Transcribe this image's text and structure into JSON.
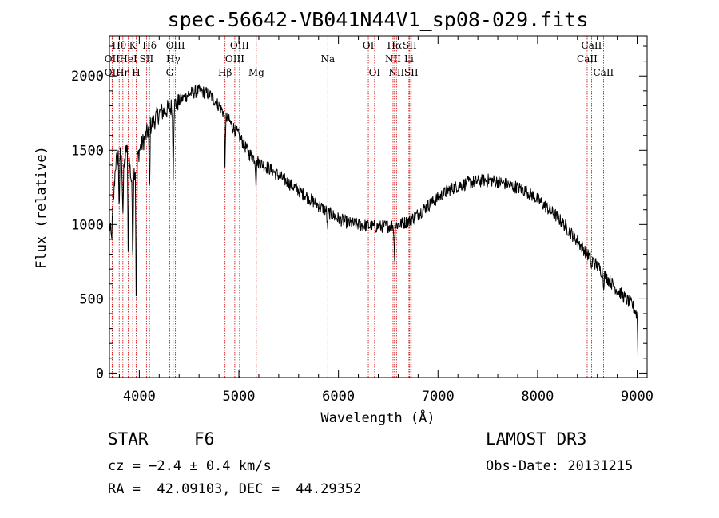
{
  "colors": {
    "spectrum": "#000000",
    "line_marker": "#cc0000",
    "axis": "#000000"
  },
  "chart_data": {
    "type": "line",
    "title": "spec-56642-VB041N44V1_sp08-029.fits",
    "xlabel": "Wavelength (Å)",
    "ylabel": "Flux (relative)",
    "xlim": [
      3700,
      9100
    ],
    "ylim": [
      -30,
      2270
    ],
    "xticks": [
      4000,
      5000,
      6000,
      7000,
      8000,
      9000
    ],
    "yticks": [
      0,
      500,
      1000,
      1500,
      2000
    ],
    "spectrum_anchors": [
      [
        3700,
        1000
      ],
      [
        3720,
        900
      ],
      [
        3760,
        1400
      ],
      [
        3800,
        1500
      ],
      [
        3840,
        1350
      ],
      [
        3880,
        1550
      ],
      [
        3920,
        1300
      ],
      [
        3970,
        1400
      ],
      [
        4000,
        1500
      ],
      [
        4100,
        1650
      ],
      [
        4200,
        1750
      ],
      [
        4300,
        1780
      ],
      [
        4400,
        1830
      ],
      [
        4500,
        1880
      ],
      [
        4600,
        1900
      ],
      [
        4700,
        1880
      ],
      [
        4800,
        1800
      ],
      [
        4900,
        1700
      ],
      [
        5000,
        1600
      ],
      [
        5100,
        1480
      ],
      [
        5200,
        1420
      ],
      [
        5300,
        1380
      ],
      [
        5400,
        1330
      ],
      [
        5500,
        1280
      ],
      [
        5600,
        1230
      ],
      [
        5700,
        1180
      ],
      [
        5800,
        1130
      ],
      [
        5900,
        1080
      ],
      [
        6000,
        1040
      ],
      [
        6100,
        1010
      ],
      [
        6200,
        1000
      ],
      [
        6300,
        990
      ],
      [
        6400,
        985
      ],
      [
        6500,
        990
      ],
      [
        6600,
        1000
      ],
      [
        6700,
        1020
      ],
      [
        6800,
        1070
      ],
      [
        6900,
        1130
      ],
      [
        7000,
        1180
      ],
      [
        7100,
        1230
      ],
      [
        7200,
        1260
      ],
      [
        7300,
        1280
      ],
      [
        7400,
        1290
      ],
      [
        7500,
        1300
      ],
      [
        7600,
        1290
      ],
      [
        7700,
        1270
      ],
      [
        7800,
        1250
      ],
      [
        7900,
        1220
      ],
      [
        8000,
        1170
      ],
      [
        8100,
        1110
      ],
      [
        8200,
        1050
      ],
      [
        8300,
        970
      ],
      [
        8400,
        890
      ],
      [
        8500,
        800
      ],
      [
        8600,
        720
      ],
      [
        8700,
        640
      ],
      [
        8800,
        560
      ],
      [
        8900,
        490
      ],
      [
        8950,
        460
      ],
      [
        9000,
        390
      ],
      [
        9010,
        50
      ]
    ],
    "absorption_dips": [
      [
        3798,
        400
      ],
      [
        3835,
        300
      ],
      [
        3889,
        700
      ],
      [
        3934,
        600
      ],
      [
        3970,
        1050
      ],
      [
        4102,
        500
      ],
      [
        4340,
        450
      ],
      [
        4861,
        350
      ],
      [
        5172,
        150
      ],
      [
        5890,
        120
      ],
      [
        6563,
        220
      ],
      [
        8542,
        80
      ],
      [
        8662,
        80
      ]
    ],
    "noise_amplitude": 45,
    "spectral_lines": [
      {
        "label": "Hθ",
        "wave": 3798,
        "row": 1
      },
      {
        "label": "OII",
        "wave": 3727,
        "row": 2
      },
      {
        "label": "OII",
        "wave": 3727,
        "row": 3
      },
      {
        "label": "K",
        "wave": 3934,
        "row": 1
      },
      {
        "label": "HeI",
        "wave": 3889,
        "row": 2
      },
      {
        "label": "Hη",
        "wave": 3835,
        "row": 3
      },
      {
        "label": "H",
        "wave": 3969,
        "row": 3
      },
      {
        "label": "Hδ",
        "wave": 4102,
        "row": 1
      },
      {
        "label": "SII",
        "wave": 4072,
        "row": 2
      },
      {
        "label": "OIII",
        "wave": 4363,
        "row": 1
      },
      {
        "label": "Hγ",
        "wave": 4340,
        "row": 2
      },
      {
        "label": "G",
        "wave": 4305,
        "row": 3
      },
      {
        "label": "OIII",
        "wave": 5007,
        "row": 1
      },
      {
        "label": "OIII",
        "wave": 4959,
        "row": 2
      },
      {
        "label": "Hβ",
        "wave": 4861,
        "row": 3
      },
      {
        "label": "Mg",
        "wave": 5175,
        "row": 3
      },
      {
        "label": "Na",
        "wave": 5893,
        "row": 2
      },
      {
        "label": "OI",
        "wave": 6300,
        "row": 1
      },
      {
        "label": "OI",
        "wave": 6363,
        "row": 3
      },
      {
        "label": "Hα",
        "wave": 6563,
        "row": 1
      },
      {
        "label": "NII",
        "wave": 6548,
        "row": 2
      },
      {
        "label": "NII",
        "wave": 6583,
        "row": 3
      },
      {
        "label": "SII",
        "wave": 6716,
        "row": 1
      },
      {
        "label": "Li",
        "wave": 6708,
        "row": 2
      },
      {
        "label": "SII",
        "wave": 6731,
        "row": 3
      },
      {
        "label": "CaII",
        "wave": 8542,
        "row": 1
      },
      {
        "label": "CaII",
        "wave": 8498,
        "row": 2
      },
      {
        "label": "CaII",
        "wave": 8662,
        "row": 3
      }
    ]
  },
  "info": {
    "object_type": "STAR",
    "subclass": "F6",
    "survey": "LAMOST DR3",
    "redshift": "cz = −2.4 ± 0.4 km/s",
    "obs_date": "Obs-Date: 20131215",
    "coords": "RA =  42.09103, DEC =  44.29352"
  }
}
